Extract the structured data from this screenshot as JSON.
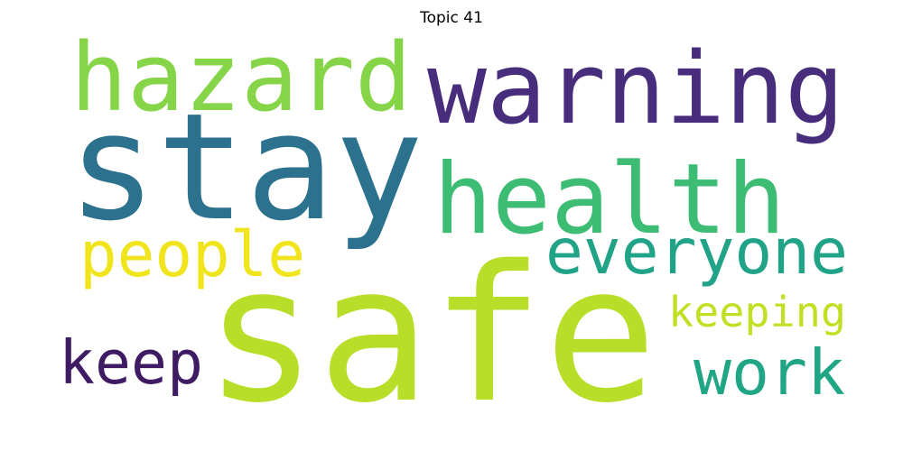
{
  "title": "Topic 41",
  "words": [
    {
      "id": "hazard",
      "text": "hazard",
      "weight": 0.55,
      "color": "#86d549"
    },
    {
      "id": "warning",
      "text": "warning",
      "weight": 0.6,
      "color": "#472d7b"
    },
    {
      "id": "stay",
      "text": "stay",
      "weight": 0.85,
      "color": "#2c728e"
    },
    {
      "id": "health",
      "text": "health",
      "weight": 0.57,
      "color": "#3dbc74"
    },
    {
      "id": "people",
      "text": "people",
      "weight": 0.38,
      "color": "#f0e51c"
    },
    {
      "id": "everyone",
      "text": "everyone",
      "weight": 0.42,
      "color": "#20a386"
    },
    {
      "id": "safe",
      "text": "safe",
      "weight": 1.0,
      "color": "#b8de29"
    },
    {
      "id": "keeping",
      "text": "keeping",
      "weight": 0.3,
      "color": "#c2df23"
    },
    {
      "id": "keep",
      "text": "keep",
      "weight": 0.38,
      "color": "#3f1b63"
    },
    {
      "id": "work",
      "text": "work",
      "weight": 0.4,
      "color": "#21a685"
    }
  ]
}
